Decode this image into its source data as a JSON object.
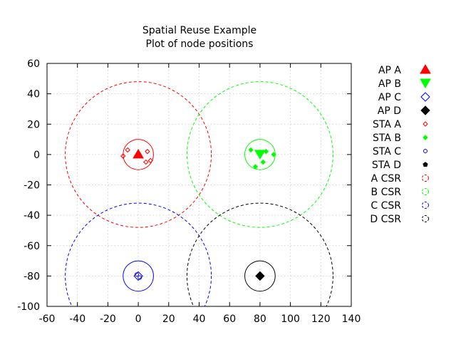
{
  "chart_data": {
    "type": "scatter",
    "title": [
      "Spatial Reuse Example",
      "Plot of node positions"
    ],
    "xlabel": "",
    "ylabel": "",
    "xlim": [
      -60,
      140
    ],
    "ylim": [
      -100,
      60
    ],
    "x_ticks": [
      -60,
      -40,
      -20,
      0,
      20,
      40,
      60,
      80,
      100,
      120,
      140
    ],
    "y_ticks": [
      -100,
      -80,
      -60,
      -40,
      -20,
      0,
      20,
      40,
      60
    ],
    "grid": true,
    "legend_position": "right",
    "series": [
      {
        "name": "AP A",
        "marker": "triangle-up-filled",
        "color": "#ff0000",
        "points": [
          [
            0,
            0
          ]
        ]
      },
      {
        "name": "AP B",
        "marker": "triangle-down-filled",
        "color": "#00ff00",
        "points": [
          [
            80,
            0
          ]
        ]
      },
      {
        "name": "AP C",
        "marker": "diamond-open",
        "color": "#0000ff",
        "points": [
          [
            0,
            -80
          ]
        ]
      },
      {
        "name": "AP D",
        "marker": "diamond-filled",
        "color": "#000000",
        "points": [
          [
            80,
            -80
          ]
        ]
      },
      {
        "name": "STA A",
        "marker": "diamond-open-small",
        "color": "#ff0000",
        "points": [
          [
            -10,
            -1
          ],
          [
            -7,
            3
          ],
          [
            6,
            2
          ],
          [
            5,
            -5
          ],
          [
            8,
            -4
          ]
        ]
      },
      {
        "name": "STA B",
        "marker": "diamond-filled-small",
        "color": "#00ff00",
        "points": [
          [
            74,
            3
          ],
          [
            84,
            2
          ],
          [
            82,
            -5
          ],
          [
            89,
            0
          ],
          [
            77,
            -8
          ]
        ]
      },
      {
        "name": "STA C",
        "marker": "circle-open-small",
        "color": "#0000ff",
        "points": [
          [
            -1,
            -79
          ],
          [
            1,
            -81
          ]
        ]
      },
      {
        "name": "STA D",
        "marker": "pentagon-filled-small",
        "color": "#000000",
        "points": [
          [
            80,
            -80
          ]
        ]
      },
      {
        "name": "A CSR",
        "marker": "circle-dashed",
        "color": "#ff0000",
        "circles": [
          {
            "cx": 0,
            "cy": 0,
            "r": 48,
            "dashed": true
          },
          {
            "cx": 0,
            "cy": 0,
            "r": 10,
            "dashed": false
          }
        ]
      },
      {
        "name": "B CSR",
        "marker": "circle-dashed",
        "color": "#00ff00",
        "circles": [
          {
            "cx": 80,
            "cy": 0,
            "r": 48,
            "dashed": true
          },
          {
            "cx": 80,
            "cy": 0,
            "r": 10,
            "dashed": false
          }
        ]
      },
      {
        "name": "C CSR",
        "marker": "circle-dashed",
        "color": "#0000ff",
        "circles": [
          {
            "cx": 0,
            "cy": -80,
            "r": 48,
            "dashed": true
          },
          {
            "cx": 0,
            "cy": -80,
            "r": 10,
            "dashed": false
          }
        ]
      },
      {
        "name": "D CSR",
        "marker": "circle-dashed",
        "color": "#000000",
        "circles": [
          {
            "cx": 80,
            "cy": -80,
            "r": 48,
            "dashed": true
          },
          {
            "cx": 80,
            "cy": -80,
            "r": 10,
            "dashed": false
          }
        ]
      }
    ]
  }
}
